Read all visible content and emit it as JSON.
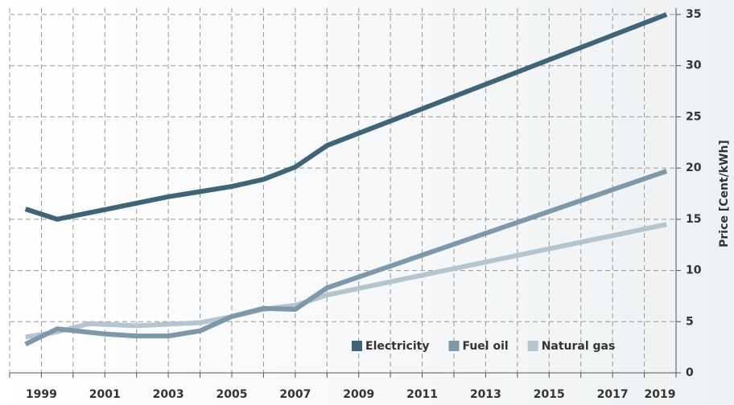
{
  "chart_data": {
    "type": "line",
    "y_label": "Price [Cent/kWh]",
    "xlim": [
      1998,
      2019
    ],
    "xticks": [
      1999,
      2001,
      2003,
      2005,
      2007,
      2009,
      2011,
      2013,
      2015,
      2017,
      2019
    ],
    "x_minor_ticks": [
      1998,
      2000,
      2002,
      2004,
      2006,
      2008,
      2010,
      2012,
      2014,
      2016,
      2018
    ],
    "ylim": [
      0,
      35
    ],
    "yticks": [
      0,
      5,
      10,
      15,
      20,
      25,
      30,
      35
    ],
    "y_axis_side": "right",
    "grid": true,
    "legend": "bottom-right",
    "series": [
      {
        "name": "Natural gas",
        "color": "#b5c5d0",
        "x": [
          1998.5,
          1999.5,
          2000.5,
          2002,
          2004,
          2005,
          2006,
          2007,
          2008,
          2018.7
        ],
        "values": [
          3.5,
          4.0,
          4.8,
          4.6,
          4.9,
          5.5,
          6.2,
          6.6,
          7.6,
          14.5
        ]
      },
      {
        "name": "Fuel oil",
        "color": "#7d99a9",
        "x": [
          1998.5,
          1999.5,
          2001,
          2002,
          2003,
          2004,
          2005,
          2006,
          2007,
          2008,
          2018.7
        ],
        "values": [
          2.8,
          4.3,
          3.8,
          3.6,
          3.6,
          4.1,
          5.5,
          6.3,
          6.2,
          8.3,
          19.7
        ]
      },
      {
        "name": "Electricity",
        "color": "#3e6478",
        "x": [
          1998.5,
          1999.5,
          2003,
          2005,
          2006,
          2007,
          2008,
          2018.7
        ],
        "values": [
          16,
          15,
          17.2,
          18.2,
          18.9,
          20.1,
          22.2,
          35
        ]
      }
    ]
  }
}
